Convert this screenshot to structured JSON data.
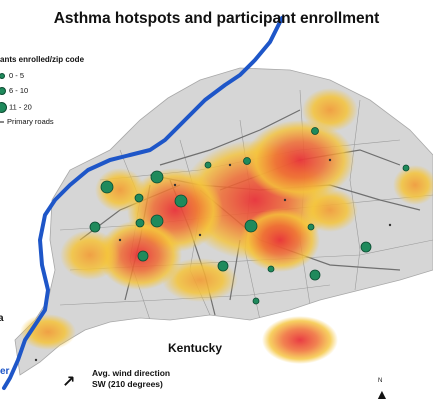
{
  "title": "Asthma hotspots and participant enrollment",
  "legend": {
    "title": "ants enrolled/zip code",
    "items": [
      {
        "label": "0 - 5",
        "symbol": "dot-small"
      },
      {
        "label": "6 - 10",
        "symbol": "dot-medium"
      },
      {
        "label": "11 - 20",
        "symbol": "dot-large"
      },
      {
        "label": "Primary roads",
        "symbol": "line"
      }
    ]
  },
  "labels": {
    "state": "Kentucky",
    "left_partial": "a",
    "river_partial": "er",
    "north": "N"
  },
  "wind": {
    "line1": "Avg. wind direction",
    "line2": "SW (210 degrees)",
    "degrees": 210
  },
  "colors": {
    "river": "#1e56c8",
    "marker": "#1f8a5c",
    "land": "#d6d6d6",
    "hotspot_low": "#f5c43a",
    "hotspot_high": "#e8323a"
  }
}
